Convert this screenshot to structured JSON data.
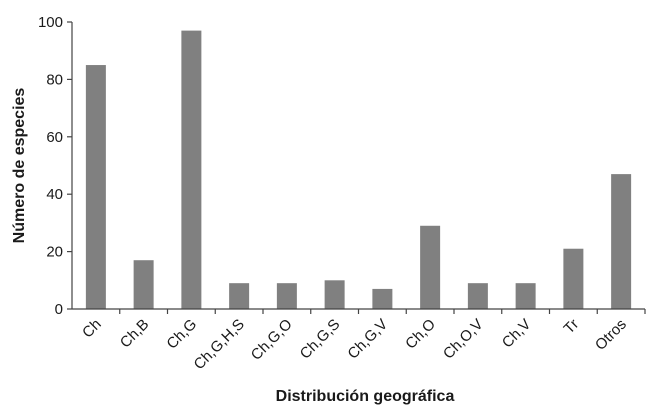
{
  "chart_data": {
    "type": "bar",
    "title": "",
    "xlabel": "Distribución geográfica",
    "ylabel": "Número de especies",
    "categories": [
      "Ch",
      "Ch,B",
      "Ch,G",
      "Ch,G,H,S",
      "Ch,G,O",
      "Ch,G,S",
      "Ch,G,V",
      "Ch,O",
      "Ch,O,V",
      "Ch,V",
      "Tr",
      "Otros"
    ],
    "values": [
      85,
      17,
      97,
      9,
      9,
      10,
      7,
      29,
      9,
      9,
      21,
      47
    ],
    "ylim": [
      0,
      100
    ],
    "yticks": [
      "0",
      "20",
      "40",
      "60",
      "80",
      "100"
    ],
    "grid": false,
    "legend": "none",
    "colors": {
      "bar": "#808080",
      "axis": "#444444",
      "text": "#1a1a1a"
    }
  }
}
